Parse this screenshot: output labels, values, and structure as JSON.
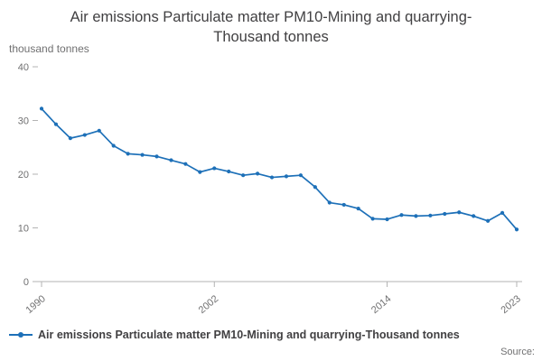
{
  "title": "Air emissions Particulate matter PM10-Mining and quarrying-Thousand tonnes",
  "unit_label": "thousand tonnes",
  "source_label": "Source:",
  "legend": {
    "label": "Air emissions Particulate matter PM10-Mining and quarrying-Thousand tonnes"
  },
  "colors": {
    "line": "#1d70b8",
    "axis": "#b3b3b3",
    "tick_text": "#707071",
    "title_text": "#414042"
  },
  "chart_data": {
    "type": "line",
    "title": "Air emissions Particulate matter PM10-Mining and quarrying-Thousand tonnes",
    "ylabel": "thousand tonnes",
    "xlabel": "",
    "xlim": [
      1990,
      2023
    ],
    "ylim": [
      0,
      40
    ],
    "yticks": [
      0,
      10,
      20,
      30,
      40
    ],
    "xticks": [
      1990,
      2002,
      2014,
      2023
    ],
    "grid": false,
    "legend_position": "bottom-left",
    "x": [
      1990,
      1991,
      1992,
      1993,
      1994,
      1995,
      1996,
      1997,
      1998,
      1999,
      2000,
      2001,
      2002,
      2003,
      2004,
      2005,
      2006,
      2007,
      2008,
      2009,
      2010,
      2011,
      2012,
      2013,
      2014,
      2015,
      2016,
      2017,
      2018,
      2019,
      2020,
      2021,
      2022,
      2023
    ],
    "series": [
      {
        "name": "Air emissions Particulate matter PM10-Mining and quarrying-Thousand tonnes",
        "values": [
          32.2,
          29.3,
          26.7,
          27.3,
          28.1,
          25.3,
          23.8,
          23.6,
          23.3,
          22.6,
          21.9,
          20.4,
          21.1,
          20.5,
          19.8,
          20.1,
          19.4,
          19.6,
          19.8,
          17.6,
          14.7,
          14.3,
          13.6,
          11.7,
          11.6,
          12.4,
          12.2,
          12.3,
          12.6,
          12.9,
          12.2,
          11.3,
          12.8,
          9.7
        ]
      }
    ]
  }
}
